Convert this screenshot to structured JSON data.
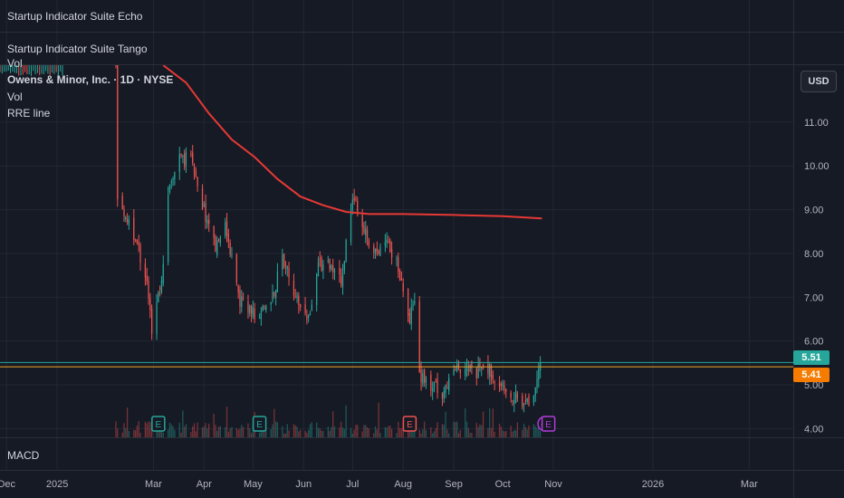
{
  "indicator_panes": [
    {
      "label": "Startup Indicator Suite Echo"
    },
    {
      "label": "Startup Indicator Suite Tango"
    }
  ],
  "legend": {
    "title": "Owens & Minor, Inc. · 1D · NYSE",
    "vol_overlay": "Vol",
    "vol": "Vol",
    "rre": "RRE line"
  },
  "currency": "USD",
  "macd_label": "MACD",
  "price_tags": {
    "last": {
      "value": "5.51",
      "color": "#26a69a"
    },
    "ref": {
      "value": "5.41",
      "color": "#f57c00"
    }
  },
  "colors": {
    "up": "#26a69a",
    "down": "#ef5350",
    "ma": "#e53935",
    "ref_line": "#f5a623",
    "grid": "#232733"
  },
  "chart_data": {
    "type": "candlestick",
    "title": "",
    "yticks": [
      "4.00",
      "5.00",
      "6.00",
      "7.00",
      "8.00",
      "9.00",
      "10.00",
      "11.00"
    ],
    "ylim": [
      3.8,
      12.3
    ],
    "xticks": [
      {
        "label": "Dec",
        "date": "2024-12-01"
      },
      {
        "label": "2025",
        "date": "2025-01-01"
      },
      {
        "label": "Mar",
        "date": "2025-03-01"
      },
      {
        "label": "Apr",
        "date": "2025-04-01"
      },
      {
        "label": "May",
        "date": "2025-05-01"
      },
      {
        "label": "Jun",
        "date": "2025-06-01"
      },
      {
        "label": "Jul",
        "date": "2025-07-01"
      },
      {
        "label": "Aug",
        "date": "2025-08-01"
      },
      {
        "label": "Sep",
        "date": "2025-09-01"
      },
      {
        "label": "Oct",
        "date": "2025-10-01"
      },
      {
        "label": "Nov",
        "date": "2025-11-01"
      },
      {
        "label": "2026",
        "date": "2026-01-01"
      },
      {
        "label": "Mar",
        "date": "2026-03-01"
      }
    ],
    "xlim": [
      "2024-11-27",
      "2026-03-28"
    ],
    "price_path": [
      [
        "2025-02-06",
        12.3
      ],
      [
        "2025-02-07",
        9.3
      ],
      [
        "2025-02-14",
        8.7
      ],
      [
        "2025-02-24",
        7.6
      ],
      [
        "2025-02-28",
        6.3
      ],
      [
        "2025-03-04",
        7.0
      ],
      [
        "2025-03-07",
        7.7
      ],
      [
        "2025-03-11",
        9.7
      ],
      [
        "2025-03-17",
        10.1
      ],
      [
        "2025-03-24",
        10.2
      ],
      [
        "2025-04-01",
        9.0
      ],
      [
        "2025-04-08",
        8.1
      ],
      [
        "2025-04-14",
        8.7
      ],
      [
        "2025-04-22",
        7.0
      ],
      [
        "2025-05-01",
        6.6
      ],
      [
        "2025-05-12",
        6.9
      ],
      [
        "2025-05-19",
        7.9
      ],
      [
        "2025-05-27",
        7.0
      ],
      [
        "2025-06-03",
        6.4
      ],
      [
        "2025-06-10",
        7.8
      ],
      [
        "2025-06-17",
        7.7
      ],
      [
        "2025-06-24",
        7.3
      ],
      [
        "2025-07-01",
        9.4
      ],
      [
        "2025-07-08",
        8.6
      ],
      [
        "2025-07-15",
        8.0
      ],
      [
        "2025-07-22",
        8.3
      ],
      [
        "2025-07-29",
        7.7
      ],
      [
        "2025-08-05",
        6.5
      ],
      [
        "2025-08-08",
        7.0
      ],
      [
        "2025-08-11",
        5.2
      ],
      [
        "2025-08-18",
        5.0
      ],
      [
        "2025-08-25",
        4.8
      ],
      [
        "2025-09-01",
        5.3
      ],
      [
        "2025-09-08",
        5.5
      ],
      [
        "2025-09-15",
        5.3
      ],
      [
        "2025-09-22",
        5.4
      ],
      [
        "2025-09-29",
        4.9
      ],
      [
        "2025-10-06",
        4.8
      ],
      [
        "2025-10-13",
        4.6
      ],
      [
        "2025-10-17",
        4.5
      ],
      [
        "2025-10-21",
        5.0
      ],
      [
        "2025-10-24",
        5.51
      ]
    ],
    "ma_line": [
      [
        "2025-03-07",
        12.3
      ],
      [
        "2025-03-21",
        11.9
      ],
      [
        "2025-04-04",
        11.2
      ],
      [
        "2025-04-18",
        10.6
      ],
      [
        "2025-05-02",
        10.2
      ],
      [
        "2025-05-16",
        9.7
      ],
      [
        "2025-05-30",
        9.3
      ],
      [
        "2025-06-13",
        9.1
      ],
      [
        "2025-06-27",
        8.95
      ],
      [
        "2025-07-11",
        8.9
      ],
      [
        "2025-08-01",
        8.9
      ],
      [
        "2025-09-01",
        8.88
      ],
      [
        "2025-10-01",
        8.85
      ],
      [
        "2025-10-25",
        8.8
      ]
    ],
    "reference_lines": [
      {
        "value": 5.51,
        "color": "#26a69a"
      },
      {
        "value": 5.41,
        "color": "#f5a623"
      }
    ],
    "events": [
      {
        "date": "2025-03-04",
        "type": "E",
        "color": "#26a69a"
      },
      {
        "date": "2025-05-05",
        "type": "E",
        "color": "#26a69a"
      },
      {
        "date": "2025-08-05",
        "type": "E",
        "color": "#ef5350"
      },
      {
        "date": "2025-10-27",
        "type": "⚡",
        "color": "#b03bd8"
      },
      {
        "date": "2025-10-29",
        "type": "E",
        "color": "#b03bd8"
      }
    ]
  }
}
